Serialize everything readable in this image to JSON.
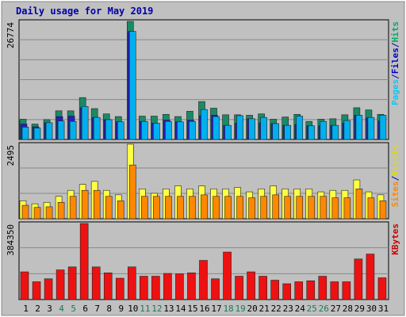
{
  "chart_data": {
    "type": "bar",
    "title": "Daily usage for May 2019",
    "categories": [
      "1",
      "2",
      "3",
      "4",
      "5",
      "6",
      "7",
      "8",
      "9",
      "10",
      "11",
      "12",
      "13",
      "14",
      "15",
      "16",
      "17",
      "18",
      "19",
      "20",
      "21",
      "22",
      "23",
      "24",
      "25",
      "26",
      "27",
      "28",
      "29",
      "30",
      "31"
    ],
    "weekend_days": [
      "4",
      "5",
      "11",
      "12",
      "18",
      "19",
      "25",
      "26"
    ],
    "panels": [
      {
        "name": "hits-files-pages",
        "ymax_label": "26774",
        "ymax": 26774,
        "right_label": [
          "Pages",
          "/",
          "Files",
          "/",
          "Hits"
        ],
        "right_label_colors": [
          "#00ccff",
          "#0000aa",
          "#0000cc",
          "#0000aa",
          "#00aa66"
        ],
        "series": [
          {
            "name": "Hits",
            "color": "#1a8a66",
            "values": [
              4600,
              3500,
              4500,
              6500,
              6500,
              9500,
              7000,
              5800,
              5200,
              26774,
              5300,
              5300,
              5700,
              5200,
              6400,
              8600,
              7100,
              5600,
              5600,
              5500,
              5800,
              4600,
              5100,
              5700,
              4100,
              4600,
              4700,
              5600,
              7200,
              6700,
              5700
            ]
          },
          {
            "name": "Files",
            "color": "#2020c8",
            "values": [
              3500,
              2900,
              3800,
              5200,
              5300,
              7200,
              5000,
              4500,
              4000,
              24500,
              4100,
              3700,
              4400,
              4000,
              4400,
              5400,
              5500,
              3200,
              3700,
              4700,
              3800,
              3600,
              3200,
              3400,
              3100,
              3100,
              3200,
              3700,
              5500,
              4900,
              4200
            ]
          },
          {
            "name": "Pages",
            "color": "#00b0ee",
            "values": [
              2800,
              2600,
              3800,
              4200,
              4100,
              7500,
              5000,
              4500,
              4000,
              24500,
              4100,
              3700,
              4100,
              4000,
              4100,
              6800,
              5200,
              3200,
              5400,
              4700,
              5000,
              3600,
              3200,
              5300,
              3100,
              4100,
              3200,
              4300,
              5500,
              5000,
              5500
            ]
          }
        ]
      },
      {
        "name": "visits-sites",
        "ymax_label": "2495",
        "ymax": 2495,
        "right_label": [
          "Sites",
          "/",
          "Visits"
        ],
        "right_label_colors": [
          "#ff8800",
          "#0000aa",
          "#dddd00"
        ],
        "series": [
          {
            "name": "Visits",
            "color": "#ffff44",
            "values": [
              600,
              500,
              550,
              750,
              950,
              1150,
              1250,
              950,
              800,
              2495,
              1000,
              850,
              1000,
              1100,
              1000,
              1100,
              1000,
              1000,
              1050,
              900,
              1000,
              1100,
              1000,
              1000,
              1000,
              900,
              950,
              950,
              1300,
              900,
              800
            ]
          },
          {
            "name": "Sites",
            "color": "#ff8800",
            "values": [
              450,
              380,
              400,
              550,
              750,
              950,
              950,
              750,
              600,
              1800,
              750,
              750,
              750,
              750,
              750,
              800,
              750,
              750,
              750,
              700,
              750,
              800,
              750,
              750,
              750,
              750,
              700,
              700,
              1000,
              700,
              600
            ]
          }
        ]
      },
      {
        "name": "kbytes",
        "ymax_label": "384350",
        "ymax": 384350,
        "right_label": [
          "KBytes"
        ],
        "right_label_colors": [
          "#cc0000"
        ],
        "series": [
          {
            "name": "KBytes",
            "color": "#ee1111",
            "values": [
              140000,
              90000,
              105000,
              150000,
              165000,
              384350,
              165000,
              135000,
              108000,
              165000,
              118000,
              118000,
              132000,
              130000,
              135000,
              198000,
              105000,
              240000,
              118000,
              140000,
              118000,
              98000,
              80000,
              90000,
              95000,
              118000,
              90000,
              90000,
              205000,
              230000,
              110000
            ]
          }
        ]
      }
    ]
  }
}
